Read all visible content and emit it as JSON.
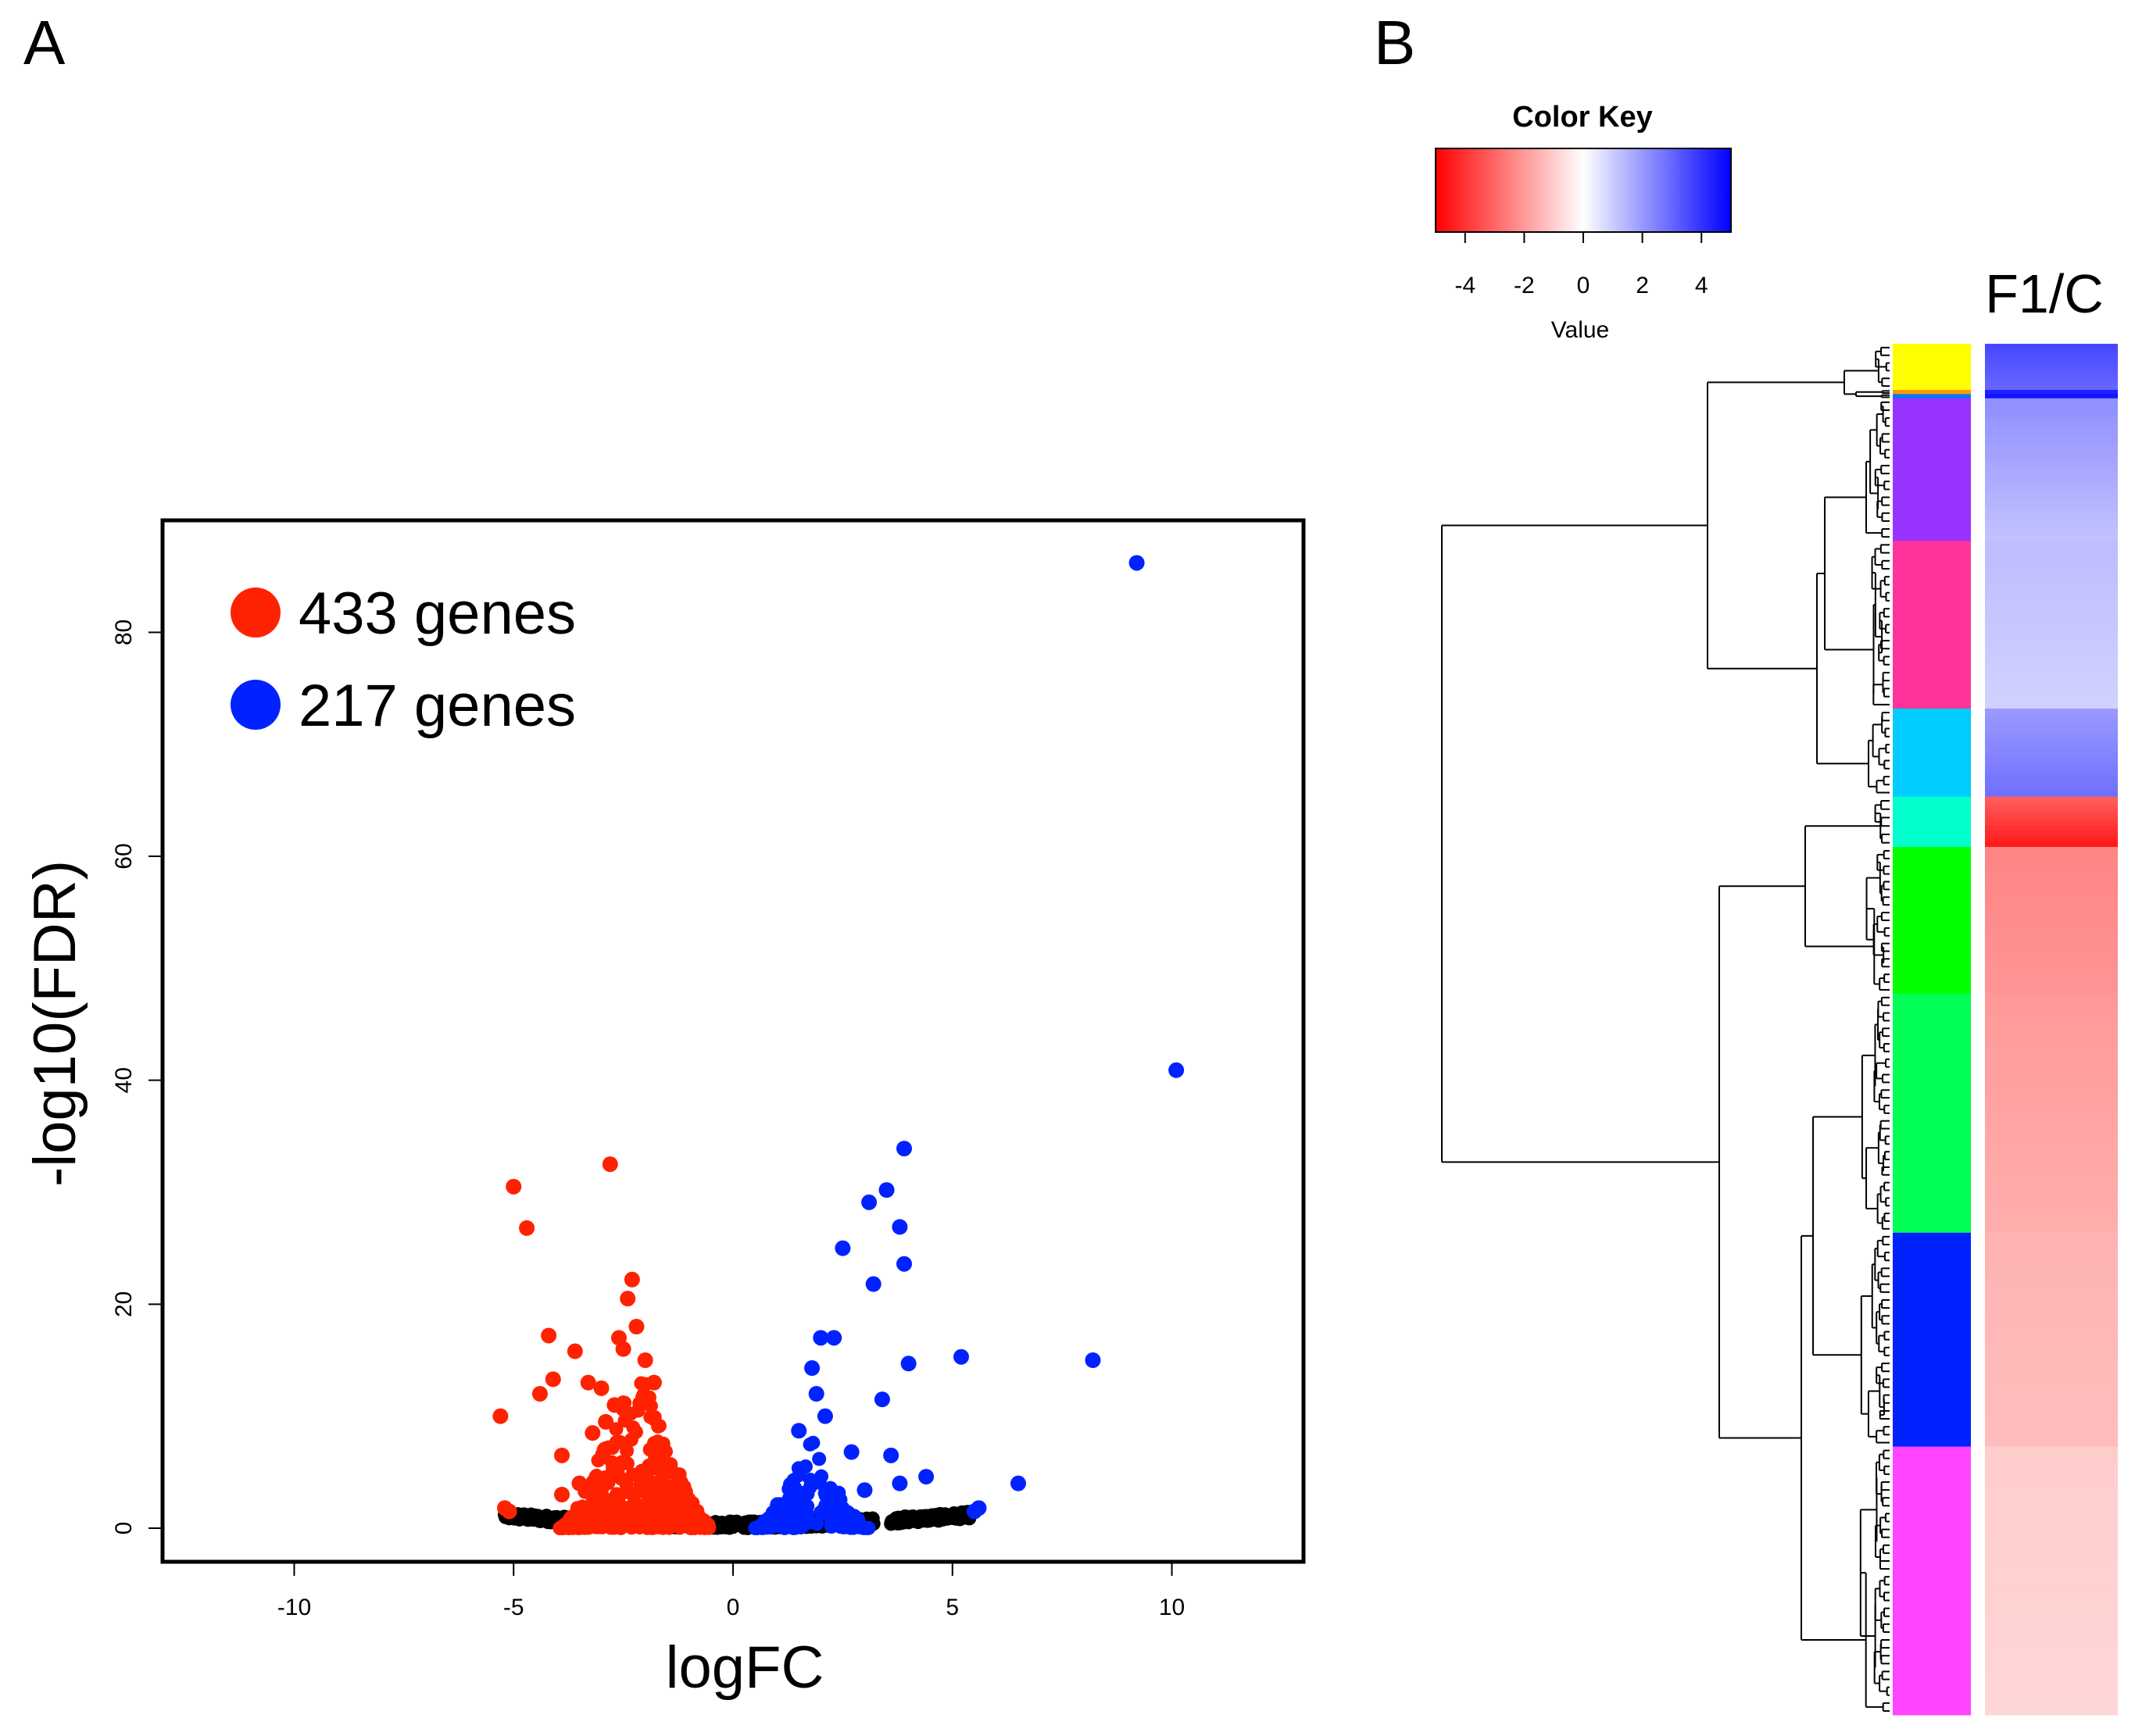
{
  "panels": {
    "a_label": "A",
    "b_label": "B"
  },
  "colors": {
    "down": "#ff2200",
    "up": "#0022ff",
    "ns": "#000000",
    "heat_low": "#ff0000",
    "heat_mid": "#ffffff",
    "heat_high": "#0000ff"
  },
  "chart_data": [
    {
      "type": "scatter",
      "subtype": "volcano",
      "xlabel": "logFC",
      "ylabel": "-log10(FDR)",
      "xlim": [
        -13,
        13
      ],
      "ylim": [
        -3,
        90
      ],
      "xticks": [
        -10,
        -5,
        0,
        5,
        10
      ],
      "yticks": [
        0,
        20,
        40,
        60,
        80
      ],
      "grid": false,
      "legend": {
        "position": "top-left",
        "entries": [
          {
            "label": "433 genes",
            "color_key": "down"
          },
          {
            "label": "217 genes",
            "color_key": "up"
          }
        ]
      },
      "series": [
        {
          "name": "down",
          "color_key": "down",
          "cloud": {
            "center": -2.2,
            "halfwidth": 1.75,
            "peak": 16,
            "count": 340
          },
          "points": [
            [
              -5.0,
              30.5
            ],
            [
              -4.7,
              26.8
            ],
            [
              -2.8,
              32.5
            ],
            [
              -5.3,
              10.0
            ],
            [
              -4.4,
              12.0
            ],
            [
              -3.9,
              6.5
            ],
            [
              -4.2,
              17.2
            ],
            [
              -4.1,
              13.3
            ],
            [
              -3.6,
              15.8
            ],
            [
              -3.3,
              13.0
            ],
            [
              -3.0,
              12.5
            ],
            [
              -2.5,
              16.0
            ],
            [
              -2.3,
              22.2
            ],
            [
              -2.4,
              20.5
            ],
            [
              -2.6,
              17.0
            ],
            [
              -2.2,
              18.0
            ],
            [
              -2.0,
              15.0
            ],
            [
              -1.8,
              13.0
            ],
            [
              -3.9,
              3.0
            ],
            [
              -3.5,
              4.0
            ],
            [
              -5.2,
              1.8
            ],
            [
              -5.1,
              1.5
            ],
            [
              -3.2,
              8.5
            ],
            [
              -2.9,
              9.5
            ],
            [
              -2.7,
              11.0
            ]
          ]
        },
        {
          "name": "up",
          "color_key": "up",
          "cloud": {
            "center": 1.8,
            "halfwidth": 1.3,
            "peak": 8,
            "count": 150
          },
          "points": [
            [
              9.2,
              86.2
            ],
            [
              10.1,
              40.9
            ],
            [
              3.9,
              33.9
            ],
            [
              3.5,
              30.2
            ],
            [
              3.1,
              29.1
            ],
            [
              3.8,
              26.9
            ],
            [
              3.9,
              23.6
            ],
            [
              2.5,
              25.0
            ],
            [
              3.2,
              21.8
            ],
            [
              2.0,
              17.0
            ],
            [
              2.3,
              17.0
            ],
            [
              8.2,
              15.0
            ],
            [
              5.2,
              15.3
            ],
            [
              4.0,
              14.7
            ],
            [
              1.8,
              14.3
            ],
            [
              3.4,
              11.5
            ],
            [
              1.5,
              8.7
            ],
            [
              2.7,
              6.8
            ],
            [
              3.6,
              6.5
            ],
            [
              4.4,
              4.6
            ],
            [
              3.8,
              4.0
            ],
            [
              3.0,
              3.4
            ],
            [
              6.5,
              4.0
            ],
            [
              5.6,
              1.8
            ],
            [
              5.5,
              1.5
            ],
            [
              2.1,
              10.0
            ],
            [
              1.9,
              12.0
            ]
          ]
        },
        {
          "name": "not significant",
          "color_key": "ns",
          "ranges": [
            [
              -5.2,
              -3.8
            ],
            [
              -3.5,
              3.2
            ],
            [
              3.6,
              5.4
            ]
          ]
        }
      ]
    },
    {
      "type": "heatmap",
      "title": "Color Key",
      "color_key": {
        "label": "Value",
        "ticks": [
          -4,
          -2,
          0,
          2,
          4
        ],
        "range": [
          -5,
          5
        ]
      },
      "column_labels": [
        "F1/C"
      ],
      "modules": [
        {
          "name": "yellow",
          "color": "#ffff00",
          "rows": 11,
          "value_start": 3.6,
          "value_end": 3.0
        },
        {
          "name": "orange",
          "color": "#ff9900",
          "rows": 1,
          "value_start": 4.4,
          "value_end": 4.4
        },
        {
          "name": "steelblue",
          "color": "#0077ff",
          "rows": 1,
          "value_start": 4.6,
          "value_end": 4.6
        },
        {
          "name": "purple",
          "color": "#9933ff",
          "rows": 34,
          "value_start": 2.2,
          "value_end": 1.2
        },
        {
          "name": "deeppink",
          "color": "#ff3399",
          "rows": 40,
          "value_start": 1.3,
          "value_end": 0.9
        },
        {
          "name": "skyblue",
          "color": "#00ccff",
          "rows": 21,
          "value_start": 2.0,
          "value_end": 2.8
        },
        {
          "name": "turquoise",
          "color": "#00ffcc",
          "rows": 12,
          "value_start": -3.2,
          "value_end": -4.5
        },
        {
          "name": "green",
          "color": "#00ff00",
          "rows": 35,
          "value_start": -2.4,
          "value_end": -2.1
        },
        {
          "name": "springgreen",
          "color": "#00ff55",
          "rows": 57,
          "value_start": -2.0,
          "value_end": -1.6
        },
        {
          "name": "blue",
          "color": "#0022ff",
          "rows": 51,
          "value_start": -1.5,
          "value_end": -1.3
        },
        {
          "name": "magenta",
          "color": "#ff44ff",
          "rows": 64,
          "value_start": -1.0,
          "value_end": -0.8
        }
      ]
    }
  ]
}
